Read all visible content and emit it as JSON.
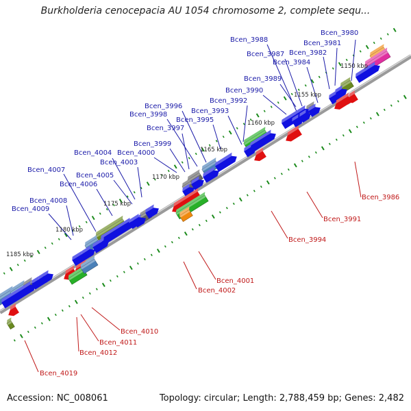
{
  "title": "Burkholderia cenocepacia AU 1054 chromosome 2, complete sequ...",
  "footer": {
    "accession": "Accession: NC_008061",
    "summary": "Topology: circular; Length: 2,788,459 bp; Genes: 2,482"
  },
  "colors": {
    "forward": "#1010e0",
    "reverse": "#e01010",
    "steelblue": "#4a80b8",
    "olive": "#6a8a20",
    "green": "#28b028",
    "gray": "#666666",
    "lightgray": "#c8c8c8",
    "orange": "#f08a10",
    "magenta": "#e030a0",
    "backbone": "#9a9a9a",
    "tick": "#1a8a1a",
    "label_top": "#1a1aa8",
    "label_bottom": "#c01818"
  },
  "kbp_markers": [
    "1150 kbp",
    "1155 kbp",
    "1160 kbp",
    "1165 kbp",
    "1170 kbp",
    "1175 kbp",
    "1180 kbp",
    "1185 kbp"
  ],
  "top_labels": [
    "Bcen_3980",
    "Bcen_3981",
    "Bcen_3982",
    "Bcen_3984",
    "Bcen_3987",
    "Bcen_3988",
    "Bcen_3989",
    "Bcen_3990",
    "Bcen_3992",
    "Bcen_3993",
    "Bcen_3995",
    "Bcen_3996",
    "Bcen_3998",
    "Bcen_3997",
    "Bcen_3999",
    "Bcen_4000",
    "Bcen_4003",
    "Bcen_4004",
    "Bcen_4005",
    "Bcen_4006",
    "Bcen_4007",
    "Bcen_4008",
    "Bcen_4009"
  ],
  "bottom_labels": [
    "Bcen_3986",
    "Bcen_3991",
    "Bcen_3994",
    "Bcen_4001",
    "Bcen_4002",
    "Bcen_4010",
    "Bcen_4011",
    "Bcen_4012",
    "Bcen_4019"
  ]
}
